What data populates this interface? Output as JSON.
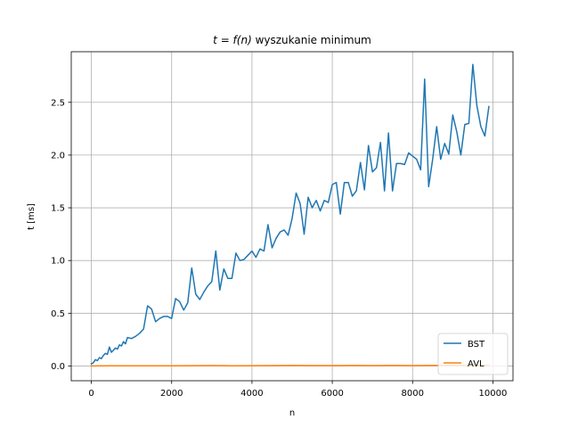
{
  "chart_data": {
    "type": "line",
    "title_prefix": "t = f(n)",
    "title_suffix": " wyszukanie minimum",
    "xlabel": "n",
    "ylabel": "t [ms]",
    "xlim": [
      -500,
      10500
    ],
    "ylim": [
      -0.14,
      2.98
    ],
    "xticks": [
      0,
      2000,
      4000,
      6000,
      8000,
      10000
    ],
    "yticks": [
      0.0,
      0.5,
      1.0,
      1.5,
      2.0,
      2.5
    ],
    "xtick_labels": [
      "0",
      "2000",
      "4000",
      "6000",
      "8000",
      "10000"
    ],
    "ytick_labels": [
      "0.0",
      "0.5",
      "1.0",
      "1.5",
      "2.0",
      "2.5"
    ],
    "grid": true,
    "legend_position": "lower right",
    "series": [
      {
        "name": "BST",
        "color": "#1f77b4",
        "x": [
          0,
          50,
          100,
          150,
          200,
          250,
          300,
          350,
          400,
          450,
          500,
          550,
          600,
          650,
          700,
          750,
          800,
          850,
          900,
          1000,
          1100,
          1200,
          1300,
          1400,
          1500,
          1600,
          1700,
          1800,
          1900,
          2000,
          2100,
          2200,
          2300,
          2400,
          2500,
          2600,
          2700,
          2800,
          2900,
          3000,
          3100,
          3200,
          3300,
          3400,
          3500,
          3600,
          3700,
          3800,
          3900,
          4000,
          4100,
          4200,
          4300,
          4400,
          4500,
          4600,
          4700,
          4800,
          4900,
          5000,
          5100,
          5200,
          5300,
          5400,
          5500,
          5600,
          5700,
          5800,
          5900,
          6000,
          6100,
          6200,
          6300,
          6400,
          6500,
          6600,
          6700,
          6800,
          6900,
          7000,
          7100,
          7200,
          7300,
          7400,
          7500,
          7600,
          7700,
          7800,
          7900,
          8000,
          8100,
          8200,
          8300,
          8400,
          8500,
          8600,
          8700,
          8800,
          8900,
          9000,
          9100,
          9200,
          9300,
          9400,
          9500,
          9600,
          9700,
          9800,
          9900
        ],
        "values": [
          0.02,
          0.03,
          0.06,
          0.05,
          0.08,
          0.07,
          0.1,
          0.12,
          0.11,
          0.18,
          0.13,
          0.15,
          0.17,
          0.16,
          0.2,
          0.19,
          0.23,
          0.21,
          0.27,
          0.26,
          0.28,
          0.31,
          0.35,
          0.57,
          0.54,
          0.42,
          0.45,
          0.47,
          0.47,
          0.45,
          0.64,
          0.61,
          0.53,
          0.6,
          0.93,
          0.68,
          0.63,
          0.7,
          0.76,
          0.8,
          1.09,
          0.72,
          0.92,
          0.83,
          0.83,
          1.07,
          1.0,
          1.01,
          1.05,
          1.09,
          1.03,
          1.11,
          1.09,
          1.34,
          1.12,
          1.21,
          1.27,
          1.29,
          1.24,
          1.4,
          1.64,
          1.54,
          1.25,
          1.6,
          1.5,
          1.57,
          1.47,
          1.57,
          1.55,
          1.72,
          1.74,
          1.44,
          1.74,
          1.74,
          1.61,
          1.66,
          1.93,
          1.67,
          2.09,
          1.84,
          1.88,
          2.12,
          1.66,
          2.21,
          1.66,
          1.92,
          1.92,
          1.91,
          2.02,
          1.99,
          1.96,
          1.86,
          2.72,
          1.7,
          1.96,
          2.27,
          1.96,
          2.11,
          2.01,
          2.38,
          2.22,
          2.0,
          2.29,
          2.3,
          2.86,
          2.47,
          2.27,
          2.18,
          2.46
        ]
      },
      {
        "name": "AVL",
        "color": "#ff7f0e",
        "x": [
          0,
          500,
          1000,
          1500,
          2000,
          2500,
          3000,
          3500,
          4000,
          4500,
          5000,
          5500,
          6000,
          6500,
          7000,
          7500,
          8000,
          8500,
          9000,
          9500,
          9900
        ],
        "values": [
          0.0,
          0.001,
          0.002,
          0.001,
          0.002,
          0.003,
          0.004,
          0.002,
          0.003,
          0.004,
          0.005,
          0.004,
          0.004,
          0.005,
          0.004,
          0.005,
          0.004,
          0.005,
          0.006,
          0.005,
          0.006
        ]
      }
    ]
  }
}
